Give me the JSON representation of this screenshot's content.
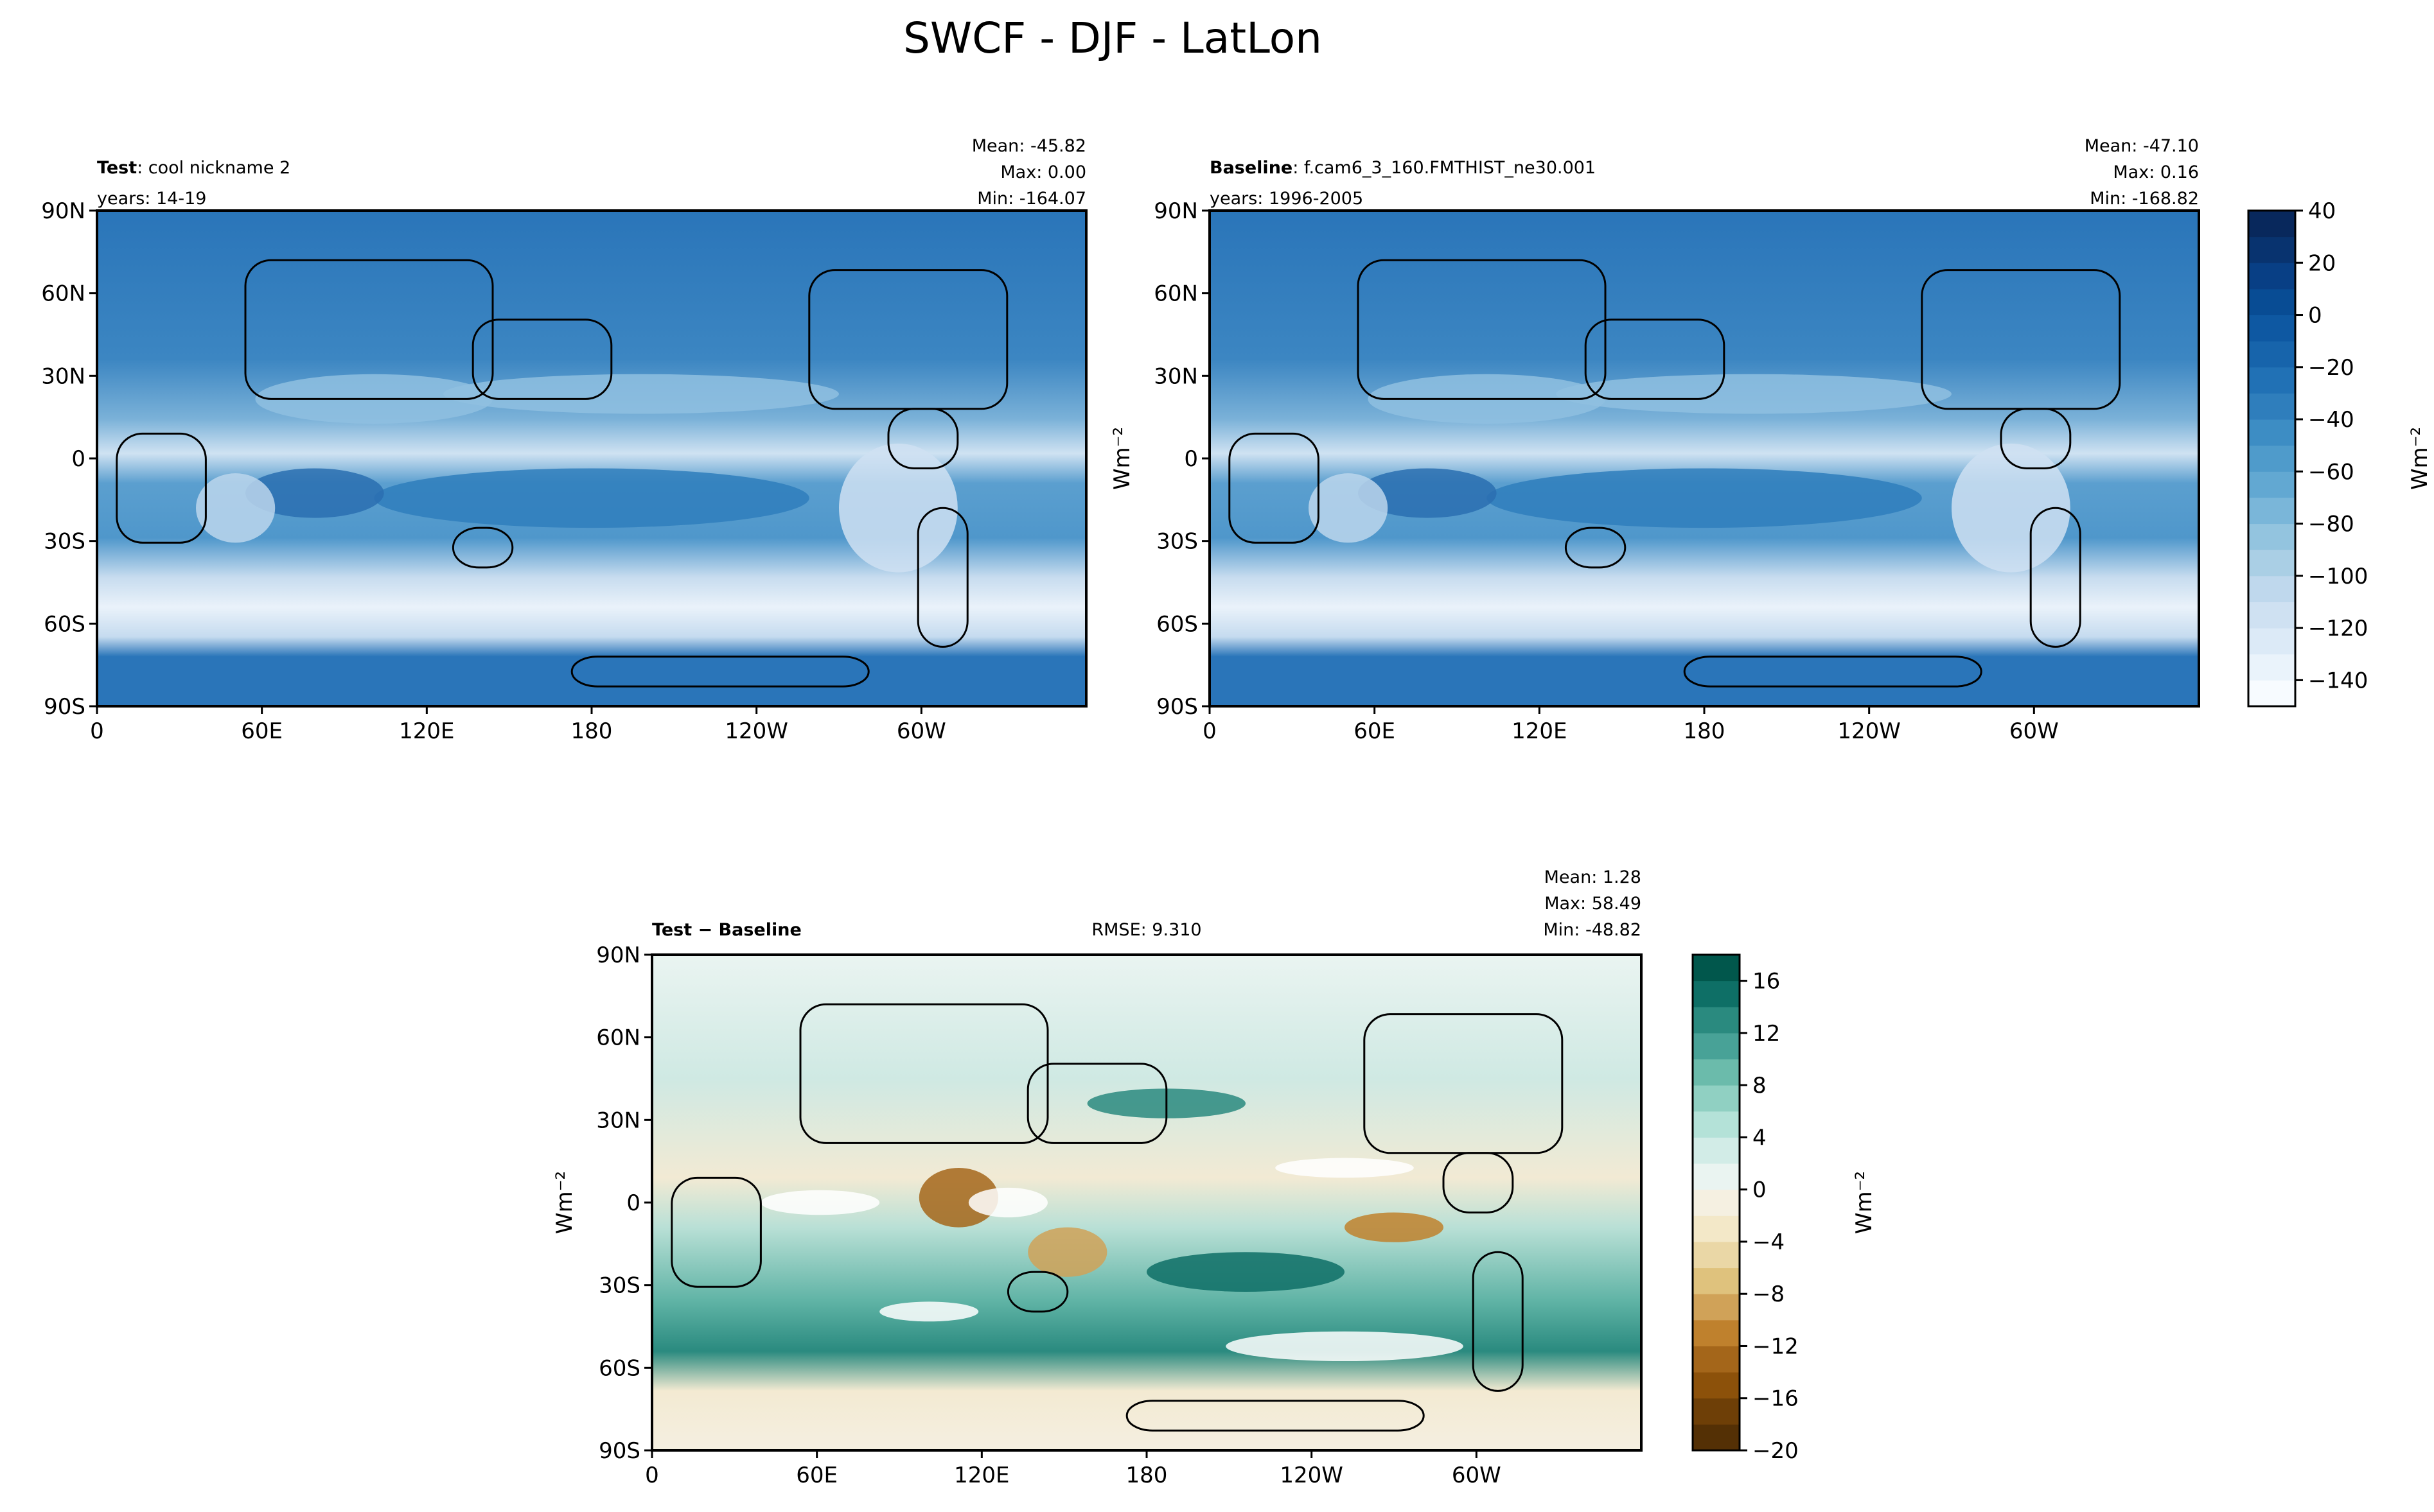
{
  "title": "SWCF - DJF - LatLon",
  "chart_data": [
    {
      "type": "heatmap",
      "panel": "test",
      "label_bold": "Test",
      "label_rest": ": cool nickname 2",
      "years": "years: 14-19",
      "stats": {
        "mean": "Mean: -45.82",
        "max": "Max:  0.00",
        "min": "Min: -164.07"
      },
      "x_ticks": [
        "0",
        "60E",
        "120E",
        "180",
        "120W",
        "60W"
      ],
      "y_ticks": [
        "90N",
        "60N",
        "30N",
        "0",
        "30S",
        "60S",
        "90S"
      ],
      "colormap": "Blues"
    },
    {
      "type": "heatmap",
      "panel": "baseline",
      "label_bold": "Baseline",
      "label_rest": ": f.cam6_3_160.FMTHIST_ne30.001",
      "years": "years: 1996-2005",
      "stats": {
        "mean": "Mean: -47.10",
        "max": "Max:  0.16",
        "min": "Min: -168.82"
      },
      "x_ticks": [
        "0",
        "60E",
        "120E",
        "180",
        "120W",
        "60W"
      ],
      "y_ticks": [
        "90N",
        "60N",
        "30N",
        "0",
        "30S",
        "60S",
        "90S"
      ],
      "ylabel": "Wm⁻²",
      "colorbar": {
        "label": "Wm⁻²",
        "range": [
          -150,
          40
        ],
        "step": 10,
        "ticks": [
          "40",
          "20",
          "0",
          "−20",
          "−40",
          "−60",
          "−80",
          "−100",
          "−120",
          "−140"
        ],
        "colors": [
          "#f7fbff",
          "#eaf3fb",
          "#dceaf7",
          "#cfe1f2",
          "#bfd8ed",
          "#aacfe5",
          "#93c4df",
          "#7ab6d9",
          "#62a8d2",
          "#4f9bcb",
          "#3d8dc4",
          "#2f7ebc",
          "#2171b5",
          "#1764ab",
          "#0e58a2",
          "#084c94",
          "#083f85",
          "#08336f",
          "#08285c"
        ]
      }
    },
    {
      "type": "heatmap",
      "panel": "difference",
      "label_bold": "Test − Baseline",
      "rmse": "RMSE: 9.310",
      "stats": {
        "mean": "Mean:  1.28",
        "max": "Max: 58.49",
        "min": "Min: -48.82"
      },
      "x_ticks": [
        "0",
        "60E",
        "120E",
        "180",
        "120W",
        "60W"
      ],
      "y_ticks": [
        "90N",
        "60N",
        "30N",
        "0",
        "30S",
        "60S",
        "90S"
      ],
      "ylabel": "Wm⁻²",
      "colorbar": {
        "label": "Wm⁻²",
        "range": [
          -20,
          18
        ],
        "step": 2,
        "ticks": [
          "16",
          "12",
          "8",
          "4",
          "0",
          "−4",
          "−8",
          "−12",
          "−16",
          "−20"
        ],
        "colors": [
          "#543005",
          "#6e3f07",
          "#8c510a",
          "#a4661a",
          "#bf812d",
          "#d0a258",
          "#dfc27d",
          "#ead7a6",
          "#f3e8c8",
          "#f5f0e1",
          "#eaf4f1",
          "#d2ece7",
          "#b4e2d8",
          "#90d0c2",
          "#6bbbab",
          "#48a297",
          "#2a8a7f",
          "#0e6f66",
          "#01574c"
        ]
      }
    }
  ]
}
